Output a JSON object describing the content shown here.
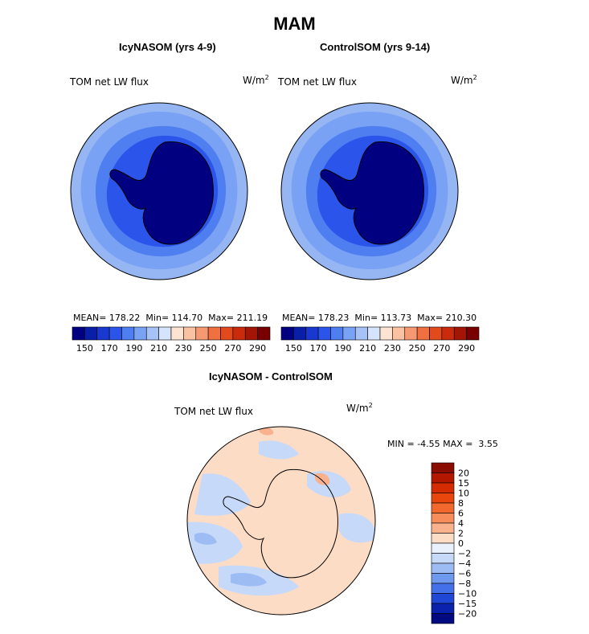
{
  "title": "MAM",
  "panels": [
    {
      "subtitle": "IcyNASOM (yrs 4-9)",
      "label": "TOM net LW flux",
      "unit_base": "W/m",
      "unit_exp": "2",
      "stats": {
        "mean_label": "MEAN=",
        "mean": "178.22",
        "min_label": "Min=",
        "min": "114.70",
        "max_label": "Max=",
        "max": "211.19"
      }
    },
    {
      "subtitle": "ControlSOM (yrs 9-14)",
      "label": "TOM net LW flux",
      "unit_base": "W/m",
      "unit_exp": "2",
      "stats": {
        "mean_label": "MEAN=",
        "mean": "178.23",
        "min_label": "Min=",
        "min": "113.73",
        "max_label": "Max=",
        "max": "210.30"
      }
    }
  ],
  "absolute_colorbar": {
    "tick_labels": [
      "150",
      "170",
      "190",
      "210",
      "230",
      "250",
      "270",
      "290"
    ],
    "colors": [
      "#000080",
      "#0a1fa8",
      "#1838cf",
      "#2b55ea",
      "#4f7ef0",
      "#7aa2f4",
      "#a7c2f7",
      "#d6e4fb",
      "#fde3d2",
      "#fbc2a2",
      "#f69872",
      "#f0703f",
      "#e24a1c",
      "#c92b0c",
      "#a31606",
      "#780000"
    ]
  },
  "difference": {
    "subtitle": "IcyNASOM - ControlSOM",
    "label": "TOM net LW flux",
    "unit_base": "W/m",
    "unit_exp": "2",
    "stats": {
      "min_label": "MIN =",
      "min": "-4.55",
      "max_label": "MAX =",
      "max": "3.55"
    },
    "colorbar": {
      "tick_labels": [
        "20",
        "15",
        "10",
        "8",
        "6",
        "4",
        "2",
        "0",
        "−2",
        "−4",
        "−6",
        "−8",
        "−10",
        "−15",
        "−20"
      ],
      "colors": [
        "#8b0c00",
        "#b41700",
        "#d42b00",
        "#e8460c",
        "#f3682c",
        "#f88d5c",
        "#fab28e",
        "#fddcc6",
        "#e9f1fc",
        "#c6d9f8",
        "#9dbcf4",
        "#6f98ef",
        "#4470ea",
        "#2147d6",
        "#0b22ad",
        "#010a80"
      ]
    }
  },
  "colors": {
    "ocean_outer": "#96b5f3",
    "ocean_mid": "#7aa2f4",
    "ocean_inner": "#4f7ef0",
    "coast_band": "#2b55ea",
    "continent": "#000080",
    "diff_positive": "#fddcc6",
    "diff_negative": "#c6d9f8",
    "diff_positive_strong": "#fab28e",
    "diff_negative_strong": "#9dbcf4",
    "coastline": "#000000"
  }
}
